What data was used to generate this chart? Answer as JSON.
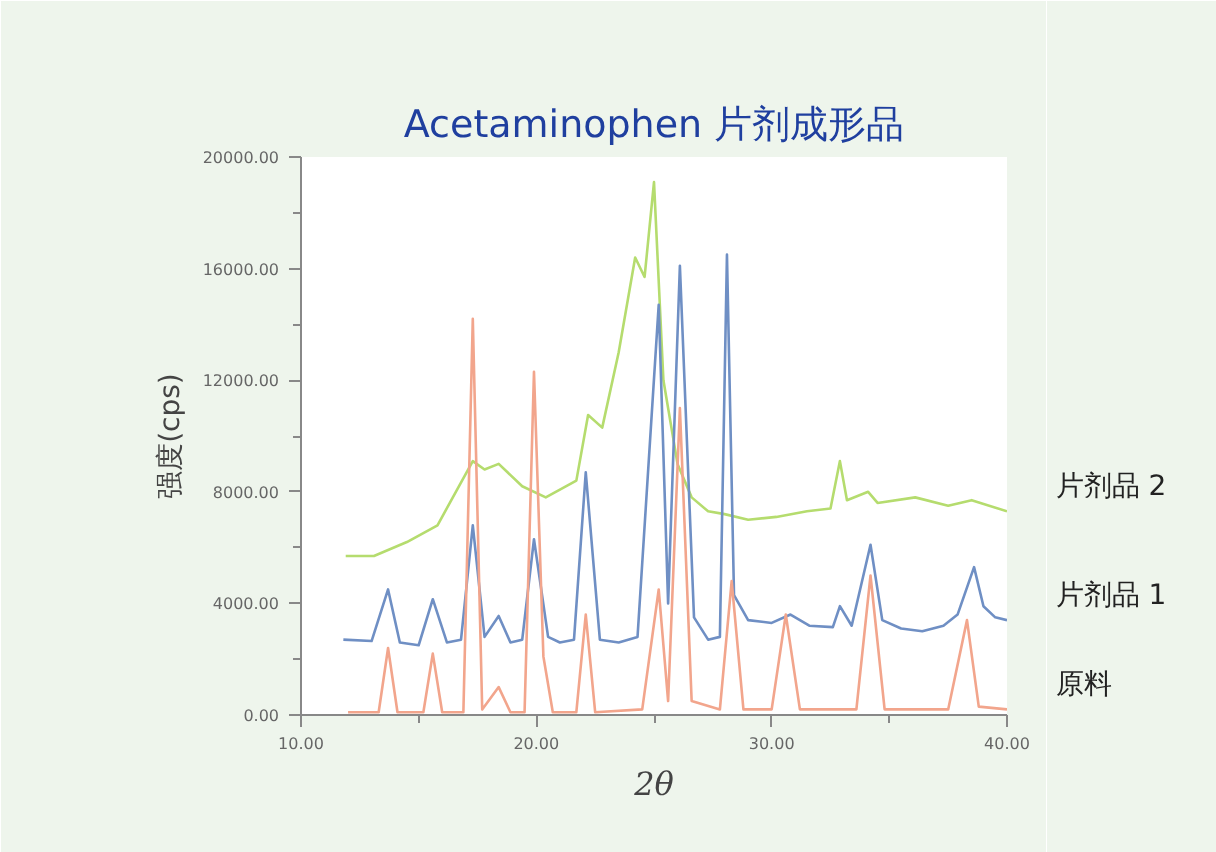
{
  "chart_data": {
    "type": "line",
    "title": "Acetaminophen 片剂成形品",
    "xlabel": "2θ",
    "ylabel": "强度(cps)",
    "xlim": [
      10,
      40
    ],
    "ylim": [
      0,
      20000
    ],
    "xticks": [
      {
        "value": 10,
        "label": "10.00"
      },
      {
        "value": 20,
        "label": "20.00"
      },
      {
        "value": 30,
        "label": "30.00"
      },
      {
        "value": 40,
        "label": "40.00"
      }
    ],
    "yticks": [
      {
        "value": 0,
        "label": "0.00"
      },
      {
        "value": 4000,
        "label": "4000.00"
      },
      {
        "value": 8000,
        "label": "8000.00"
      },
      {
        "value": 12000,
        "label": "12000.00"
      },
      {
        "value": 16000,
        "label": "16000.00"
      },
      {
        "value": 20000,
        "label": "20000.00"
      }
    ],
    "grid": false,
    "legend": false,
    "line_style": "solid",
    "marker": "none",
    "series": [
      {
        "name": "片剂品 2",
        "color": "#b5dc6e",
        "x": [
          11.9,
          13.1,
          14.5,
          15.8,
          17.3,
          17.8,
          18.4,
          19.4,
          20.4,
          21.7,
          22.2,
          22.8,
          23.5,
          24.2,
          24.6,
          25.0,
          25.4,
          26.0,
          26.6,
          27.3,
          28.0,
          29.0,
          30.2,
          31.5,
          32.5,
          32.9,
          33.2,
          34.1,
          34.5,
          36.1,
          37.5,
          38.5,
          40.0
        ],
        "values": [
          5700,
          5700,
          6200,
          6800,
          9100,
          8800,
          9000,
          8200,
          7800,
          8400,
          10750,
          10300,
          13000,
          16400,
          15700,
          19100,
          12000,
          9000,
          7800,
          7300,
          7200,
          7000,
          7100,
          7300,
          7400,
          9100,
          7700,
          8000,
          7600,
          7800,
          7500,
          7700,
          7300
        ]
      },
      {
        "name": "片剂品 1",
        "color": "#6f8fc4",
        "x": [
          11.8,
          13.0,
          13.7,
          14.2,
          15.0,
          15.6,
          16.2,
          16.8,
          17.3,
          17.8,
          18.4,
          18.9,
          19.4,
          19.9,
          20.5,
          21.0,
          21.6,
          22.1,
          22.7,
          23.5,
          24.3,
          25.2,
          25.6,
          26.1,
          26.7,
          27.3,
          27.8,
          28.1,
          28.4,
          29.0,
          30.0,
          30.8,
          31.6,
          32.6,
          32.9,
          33.4,
          34.2,
          34.7,
          35.5,
          36.4,
          37.3,
          37.9,
          38.6,
          39.0,
          39.5,
          40.0
        ],
        "values": [
          2700,
          2650,
          4500,
          2600,
          2500,
          4150,
          2600,
          2700,
          6800,
          2800,
          3550,
          2600,
          2700,
          6300,
          2800,
          2600,
          2700,
          8700,
          2700,
          2600,
          2800,
          14700,
          4000,
          16100,
          3500,
          2700,
          2800,
          16500,
          4300,
          3400,
          3300,
          3600,
          3200,
          3150,
          3900,
          3200,
          6100,
          3400,
          3100,
          3000,
          3200,
          3600,
          5300,
          3900,
          3500,
          3400
        ]
      },
      {
        "name": "原料",
        "color": "#f2a58c",
        "x": [
          12.0,
          13.3,
          13.7,
          14.1,
          15.2,
          15.6,
          16.0,
          16.9,
          17.3,
          17.7,
          18.4,
          18.9,
          19.5,
          19.9,
          20.3,
          20.7,
          21.7,
          22.1,
          22.5,
          24.5,
          25.2,
          25.6,
          26.1,
          26.6,
          27.8,
          28.3,
          28.8,
          30.0,
          30.6,
          31.2,
          33.6,
          34.2,
          34.8,
          37.5,
          38.3,
          38.8,
          40.0
        ],
        "values": [
          100,
          100,
          2400,
          100,
          100,
          2200,
          100,
          100,
          14200,
          200,
          1000,
          100,
          100,
          12300,
          2100,
          100,
          100,
          3600,
          100,
          200,
          4500,
          500,
          11000,
          500,
          200,
          4800,
          200,
          200,
          3600,
          200,
          200,
          5000,
          200,
          200,
          3400,
          300,
          200
        ]
      }
    ]
  }
}
